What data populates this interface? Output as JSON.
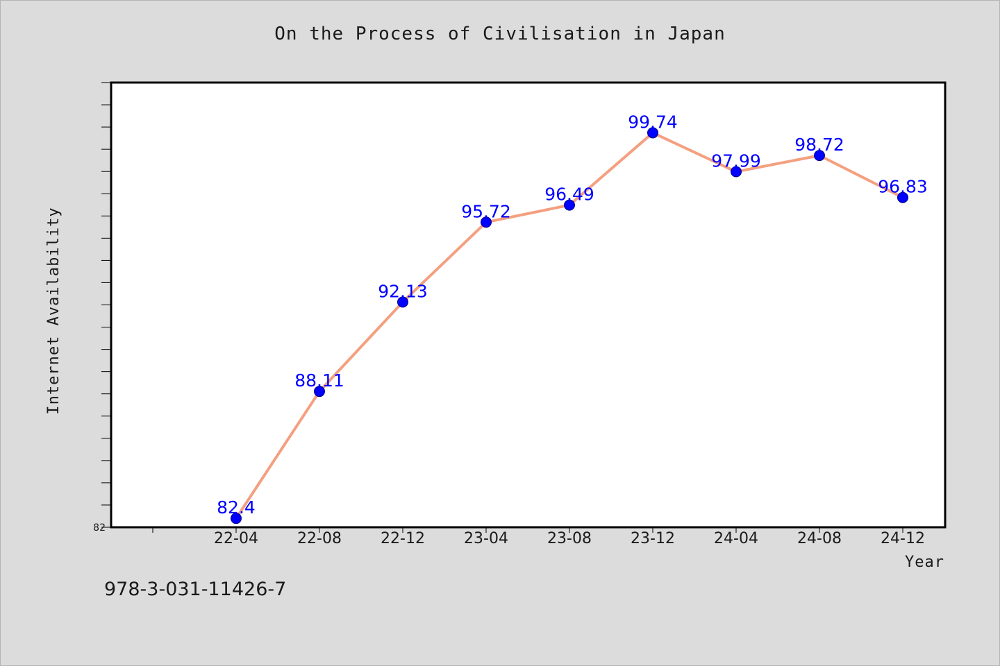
{
  "chart_data": {
    "type": "line",
    "title": "On the Process of Civilisation in Japan",
    "xlabel": "Year",
    "ylabel": "Internet Availability",
    "categories": [
      "22-04",
      "22-08",
      "22-12",
      "23-04",
      "23-08",
      "23-12",
      "24-04",
      "24-08",
      "24-12"
    ],
    "series": [
      {
        "values": [
          82.4,
          88.11,
          92.13,
          95.72,
          96.49,
          99.74,
          97.99,
          98.72,
          96.83
        ]
      }
    ],
    "data_labels": [
      "82.4",
      "88.11",
      "92.13",
      "95.72",
      "96.49",
      "99.74",
      "97.99",
      "98.72",
      "96.83"
    ],
    "y_tick_labels": [
      "82"
    ],
    "ylim": [
      82,
      102
    ],
    "grid": false,
    "legend": "none",
    "colors": {
      "line": "#f4a080",
      "marker": "#0000ff",
      "marker_edge": "#000080",
      "data_label": "#0000ff",
      "plot_background": "#ffffff",
      "page_background": "#dcdcdc"
    }
  },
  "footnote": "978-3-031-11426-7"
}
